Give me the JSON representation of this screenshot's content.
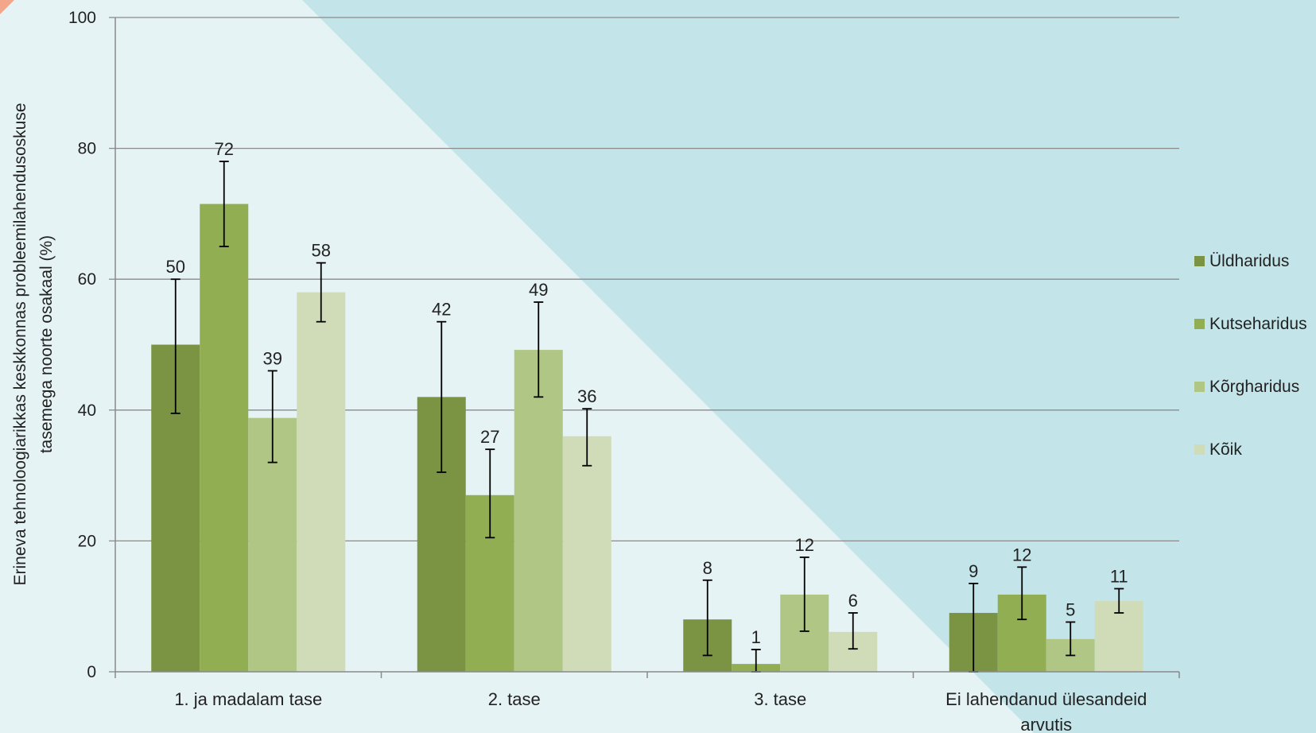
{
  "chart_data": {
    "type": "bar",
    "title": "",
    "ylabel_lines": [
      "Erineva tehnoloogiarikkas keskkonnas probleemilahendusoskuse",
      "tasemega noorte osakaal  (%)"
    ],
    "xlabel": "",
    "ylim": [
      0,
      100
    ],
    "yticks": [
      0,
      20,
      40,
      60,
      80,
      100
    ],
    "grid": true,
    "legend_position": "right",
    "categories": [
      [
        "1. ja madalam tase"
      ],
      [
        "2. tase"
      ],
      [
        "3. tase"
      ],
      [
        "Ei lahendanud ülesandeid",
        "arvutis"
      ]
    ],
    "series": [
      {
        "name": "Üldharidus",
        "color": "#7b9443",
        "values": [
          50,
          42,
          8,
          9
        ],
        "error_low": [
          39.5,
          30.5,
          2.5,
          0
        ],
        "error_high": [
          60,
          53.5,
          14,
          13.5
        ],
        "labels": [
          "50",
          "42",
          "8",
          "9"
        ]
      },
      {
        "name": "Kutseharidus",
        "color": "#92ae53",
        "values": [
          71.5,
          27,
          1.2,
          11.8
        ],
        "error_low": [
          65,
          20.5,
          0,
          8
        ],
        "error_high": [
          78,
          34,
          3.4,
          16
        ],
        "labels": [
          "72",
          "27",
          "1",
          "12"
        ]
      },
      {
        "name": "Kõrgharidus",
        "color": "#afc685",
        "values": [
          38.8,
          49.2,
          11.8,
          5
        ],
        "error_low": [
          32,
          42,
          6.2,
          2.5
        ],
        "error_high": [
          46,
          56.5,
          17.5,
          7.6
        ],
        "labels": [
          "39",
          "49",
          "12",
          "5"
        ]
      },
      {
        "name": "Kõik",
        "color": "#d0dcb7",
        "values": [
          58,
          36,
          6.1,
          10.8
        ],
        "error_low": [
          53.5,
          31.5,
          3.5,
          9
        ],
        "error_high": [
          62.5,
          40.2,
          9,
          12.7
        ],
        "labels": [
          "58",
          "36",
          "6",
          "11"
        ]
      }
    ]
  }
}
